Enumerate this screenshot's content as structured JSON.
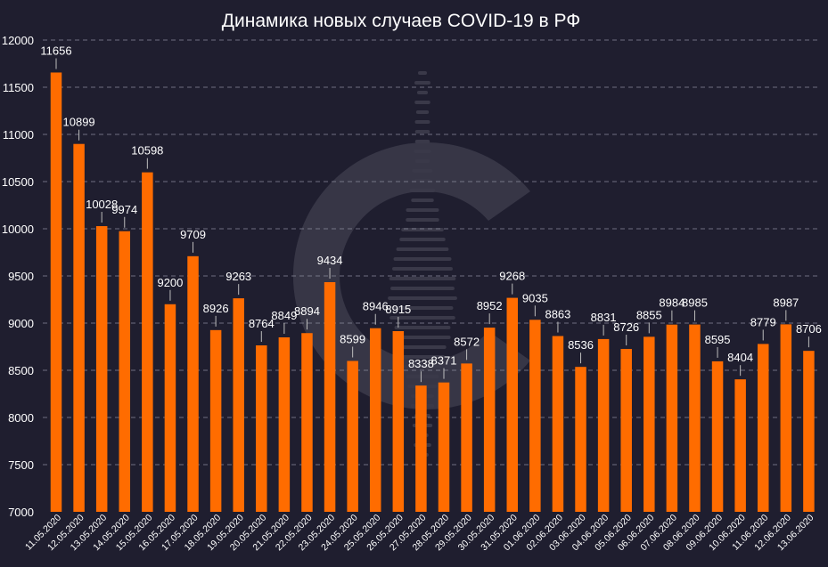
{
  "colors": {
    "background": "#1f1e2f",
    "bar": "#ff6c00",
    "text": "#ffffff",
    "grid": "#8a8a9c",
    "watermark": "#3a3949"
  },
  "watermark_icon": "c-logo-watermark",
  "chart_data": {
    "type": "bar",
    "title": "Динамика новых случаев COVID-19 в РФ",
    "xlabel": "",
    "ylabel": "",
    "ylim": [
      7000,
      12000
    ],
    "yticks": [
      7000,
      7500,
      8000,
      8500,
      9000,
      9500,
      10000,
      10500,
      11000,
      11500,
      12000
    ],
    "grid": true,
    "legend": "none",
    "categories": [
      "11.05.2020",
      "12.05.2020",
      "13.05.2020",
      "14.05.2020",
      "15.05.2020",
      "16.05.2020",
      "17.05.2020",
      "18.05.2020",
      "19.05.2020",
      "20.05.2020",
      "21.05.2020",
      "22.05.2020",
      "23.05.2020",
      "24.05.2020",
      "25.05.2020",
      "26.05.2020",
      "27.05.2020",
      "28.05.2020",
      "29.05.2020",
      "30.05.2020",
      "31.05.2020",
      "01.06.2020",
      "02.06.2020",
      "03.06.2020",
      "04.06.2020",
      "05.06.2020",
      "06.06.2020",
      "07.06.2020",
      "08.06.2020",
      "09.06.2020",
      "10.06.2020",
      "11.06.2020",
      "12.06.2020",
      "13.06.2020"
    ],
    "values": [
      11656,
      10899,
      10028,
      9974,
      10598,
      9200,
      9709,
      8926,
      9263,
      8764,
      8849,
      8894,
      9434,
      8599,
      8946,
      8915,
      8338,
      8371,
      8572,
      8952,
      9268,
      9035,
      8863,
      8536,
      8831,
      8726,
      8855,
      8984,
      8985,
      8595,
      8404,
      8779,
      8987,
      8706
    ]
  }
}
